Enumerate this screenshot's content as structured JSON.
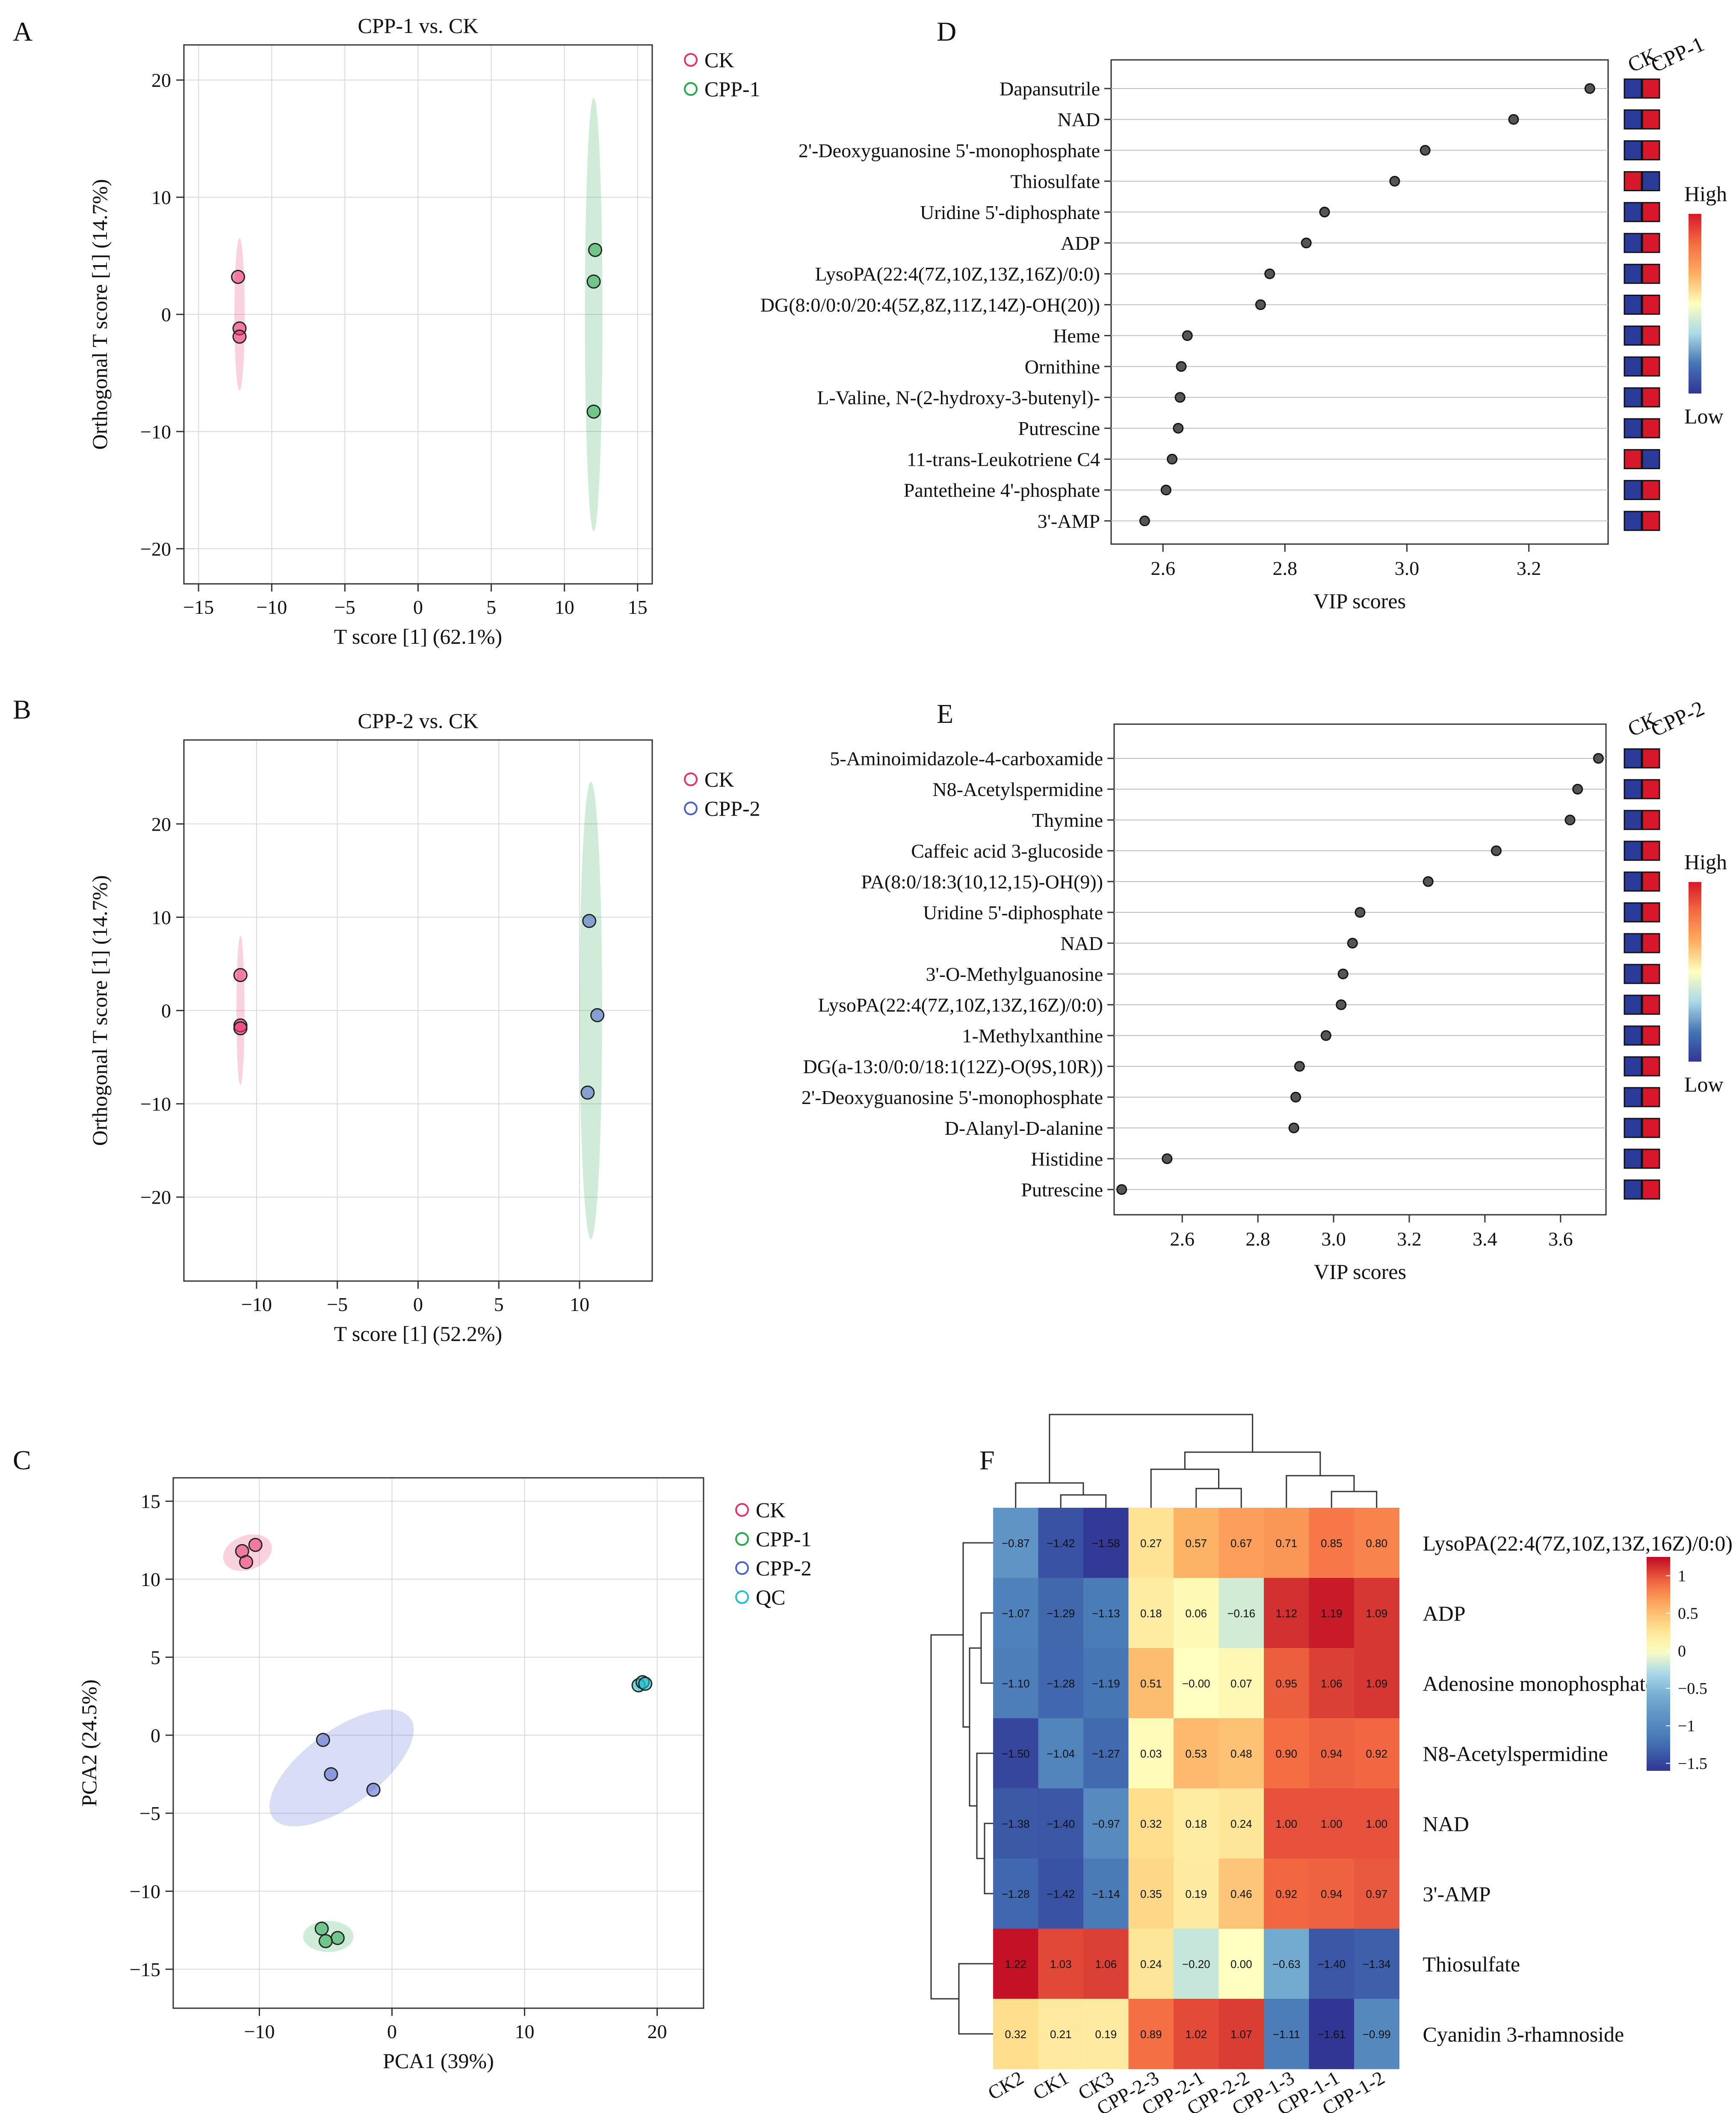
{
  "colors": {
    "ck": "#e8336a",
    "cpp1": "#22a84a",
    "cpp2": "#4a62c8",
    "qc": "#21c0c8",
    "lollipop_dot": "#555555",
    "grid": "#d9d9d9",
    "box_ck_low": "#2b3b9a",
    "box_high": "#d7182a",
    "scale_gradient": [
      "#d7182a",
      "#f46d43",
      "#fdae61",
      "#ffffbf",
      "#abd9e9",
      "#4575b4",
      "#313695"
    ]
  },
  "chart_data": [
    {
      "panel": "A",
      "type": "scatter",
      "title": "CPP-1 vs. CK",
      "xlabel": "T score [1] (62.1%)",
      "ylabel": "Orthogonal T score [1] (14.7%)",
      "xlim": [
        -16,
        16
      ],
      "ylim": [
        -23,
        23
      ],
      "xticks": [
        -15,
        -10,
        -5,
        0,
        5,
        10,
        15
      ],
      "yticks": [
        -20,
        -10,
        0,
        10,
        20
      ],
      "x_tick_labels": [
        "−15",
        "−10",
        "−5",
        "0",
        "5",
        "10",
        "15"
      ],
      "y_tick_labels": [
        "−20",
        "−10",
        "0",
        "10",
        "20"
      ],
      "grid": true,
      "legend": [
        "CK",
        "CPP-1"
      ],
      "series": [
        {
          "name": "CK",
          "color_key": "ck",
          "points": [
            [
              -12.3,
              3.2
            ],
            [
              -12.2,
              -1.2
            ],
            [
              -12.2,
              -1.9
            ]
          ],
          "ellipse": {
            "cx": -12.2,
            "cy": 0.0,
            "rx": 0.35,
            "ry": 6.5,
            "angle": 0
          }
        },
        {
          "name": "CPP-1",
          "color_key": "cpp1",
          "points": [
            [
              12.1,
              5.5
            ],
            [
              12.0,
              2.8
            ],
            [
              12.0,
              -8.3
            ]
          ],
          "ellipse": {
            "cx": 12.0,
            "cy": 0.0,
            "rx": 0.6,
            "ry": 18.5,
            "angle": 0
          }
        }
      ]
    },
    {
      "panel": "B",
      "type": "scatter",
      "title": "CPP-2 vs. CK",
      "xlabel": "T score [1] (52.2%)",
      "ylabel": "Orthogonal T score [1] (14.7%)",
      "xlim": [
        -14.5,
        14.5
      ],
      "ylim": [
        -29,
        29
      ],
      "xticks": [
        -10,
        -5,
        0,
        5,
        10
      ],
      "yticks": [
        -20,
        -10,
        0,
        10,
        20
      ],
      "x_tick_labels": [
        "−10",
        "−5",
        "0",
        "5",
        "10"
      ],
      "y_tick_labels": [
        "−20",
        "−10",
        "0",
        "10",
        "20"
      ],
      "grid": true,
      "legend": [
        "CK",
        "CPP-2"
      ],
      "series": [
        {
          "name": "CK",
          "color_key": "ck",
          "points": [
            [
              -11.0,
              3.8
            ],
            [
              -11.0,
              -1.6
            ],
            [
              -11.0,
              -1.9
            ]
          ],
          "ellipse": {
            "cx": -11.0,
            "cy": 0.0,
            "rx": 0.25,
            "ry": 8.0,
            "angle": 0
          }
        },
        {
          "name": "CPP-2",
          "color_key": "cpp2",
          "points": [
            [
              10.6,
              9.6
            ],
            [
              11.1,
              -0.5
            ],
            [
              10.5,
              -8.8
            ]
          ],
          "ellipse": {
            "cx": 10.7,
            "cy": 0.0,
            "rx": 0.7,
            "ry": 24.5,
            "angle": 0
          },
          "fill_color_key": "cpp1"
        }
      ]
    },
    {
      "panel": "C",
      "type": "scatter",
      "title": "",
      "xlabel": "PCA1 (39%)",
      "ylabel": "PCA2 (24.5%)",
      "xlim": [
        -16.5,
        23.5
      ],
      "ylim": [
        -17.5,
        16.5
      ],
      "xticks": [
        -10,
        0,
        10,
        20
      ],
      "yticks": [
        -15,
        -10,
        -5,
        0,
        5,
        10,
        15
      ],
      "x_tick_labels": [
        "−10",
        "0",
        "10",
        "20"
      ],
      "y_tick_labels": [
        "−15",
        "−10",
        "−5",
        "0",
        "5",
        "10",
        "15"
      ],
      "grid": true,
      "legend": [
        "CK",
        "CPP-1",
        "CPP-2",
        "QC"
      ],
      "series": [
        {
          "name": "CK",
          "color_key": "ck",
          "points": [
            [
              -11.3,
              11.8
            ],
            [
              -10.3,
              12.2
            ],
            [
              -11.0,
              11.1
            ]
          ],
          "ellipse": {
            "cx": -10.9,
            "cy": 11.7,
            "rx": 1.9,
            "ry": 1.1,
            "angle": 20
          }
        },
        {
          "name": "CPP-1",
          "color_key": "cpp1",
          "points": [
            [
              -5.3,
              -12.4
            ],
            [
              -4.1,
              -13.0
            ],
            [
              -5.0,
              -13.2
            ]
          ],
          "ellipse": {
            "cx": -4.8,
            "cy": -12.9,
            "rx": 1.9,
            "ry": 1.0,
            "angle": 0
          }
        },
        {
          "name": "CPP-2",
          "color_key": "cpp2",
          "points": [
            [
              -5.2,
              -0.3
            ],
            [
              -4.6,
              -2.5
            ],
            [
              -1.4,
              -3.5
            ]
          ],
          "ellipse": {
            "cx": -3.8,
            "cy": -2.1,
            "rx": 6.4,
            "ry": 2.4,
            "angle": 36
          }
        },
        {
          "name": "QC",
          "color_key": "qc",
          "points": [
            [
              18.6,
              3.2
            ],
            [
              18.9,
              3.4
            ],
            [
              19.1,
              3.3
            ]
          ],
          "ellipse": {
            "cx": 18.9,
            "cy": 3.3,
            "rx": 0.7,
            "ry": 0.5,
            "angle": 0
          }
        }
      ]
    },
    {
      "panel": "D",
      "type": "lollipop",
      "title": "",
      "xlabel": "VIP scores",
      "xlim": [
        2.515,
        3.33
      ],
      "xticks": [
        2.6,
        2.8,
        3.0,
        3.2
      ],
      "x_tick_labels": [
        "2.6",
        "2.8",
        "3.0",
        "3.2"
      ],
      "group_labels": [
        "CK",
        "CPP-1"
      ],
      "scale_labels": [
        "High",
        "Low"
      ],
      "items": [
        {
          "label": "Dapansutrile",
          "vip": 3.3,
          "ck_high": false
        },
        {
          "label": "NAD",
          "vip": 3.175,
          "ck_high": false
        },
        {
          "label": "2'-Deoxyguanosine 5'-monophosphate",
          "vip": 3.03,
          "ck_high": false
        },
        {
          "label": "Thiosulfate",
          "vip": 2.98,
          "ck_high": true
        },
        {
          "label": "Uridine 5'-diphosphate",
          "vip": 2.865,
          "ck_high": false
        },
        {
          "label": "ADP",
          "vip": 2.835,
          "ck_high": false
        },
        {
          "label": "LysoPA(22:4(7Z,10Z,13Z,16Z)/0:0)",
          "vip": 2.775,
          "ck_high": false
        },
        {
          "label": "DG(8:0/0:0/20:4(5Z,8Z,11Z,14Z)-OH(20))",
          "vip": 2.76,
          "ck_high": false
        },
        {
          "label": "Heme",
          "vip": 2.64,
          "ck_high": false
        },
        {
          "label": "Ornithine",
          "vip": 2.63,
          "ck_high": false
        },
        {
          "label": "L-Valine, N-(2-hydroxy-3-butenyl)-",
          "vip": 2.628,
          "ck_high": false
        },
        {
          "label": "Putrescine",
          "vip": 2.625,
          "ck_high": false
        },
        {
          "label": "11-trans-Leukotriene C4",
          "vip": 2.615,
          "ck_high": true
        },
        {
          "label": "Pantetheine 4'-phosphate",
          "vip": 2.605,
          "ck_high": false
        },
        {
          "label": "3'-AMP",
          "vip": 2.57,
          "ck_high": false
        }
      ]
    },
    {
      "panel": "E",
      "type": "lollipop",
      "title": "",
      "xlabel": "VIP scores",
      "xlim": [
        2.42,
        3.72
      ],
      "xticks": [
        2.6,
        2.8,
        3.0,
        3.2,
        3.4,
        3.6
      ],
      "x_tick_labels": [
        "2.6",
        "2.8",
        "3.0",
        "3.2",
        "3.4",
        "3.6"
      ],
      "group_labels": [
        "CK",
        "CPP-2"
      ],
      "scale_labels": [
        "High",
        "Low"
      ],
      "items": [
        {
          "label": "5-Aminoimidazole-4-carboxamide",
          "vip": 3.7,
          "ck_high": false
        },
        {
          "label": "N8-Acetylspermidine",
          "vip": 3.645,
          "ck_high": false
        },
        {
          "label": "Thymine",
          "vip": 3.625,
          "ck_high": false
        },
        {
          "label": "Caffeic acid 3-glucoside",
          "vip": 3.43,
          "ck_high": false
        },
        {
          "label": "PA(8:0/18:3(10,12,15)-OH(9))",
          "vip": 3.25,
          "ck_high": false
        },
        {
          "label": "Uridine 5'-diphosphate",
          "vip": 3.07,
          "ck_high": false
        },
        {
          "label": "NAD",
          "vip": 3.05,
          "ck_high": false
        },
        {
          "label": "3'-O-Methylguanosine",
          "vip": 3.025,
          "ck_high": false
        },
        {
          "label": "LysoPA(22:4(7Z,10Z,13Z,16Z)/0:0)",
          "vip": 3.02,
          "ck_high": false
        },
        {
          "label": "1-Methylxanthine",
          "vip": 2.98,
          "ck_high": false
        },
        {
          "label": "DG(a-13:0/0:0/18:1(12Z)-O(9S,10R))",
          "vip": 2.91,
          "ck_high": false
        },
        {
          "label": "2'-Deoxyguanosine 5'-monophosphate",
          "vip": 2.9,
          "ck_high": false
        },
        {
          "label": "D-Alanyl-D-alanine",
          "vip": 2.895,
          "ck_high": false
        },
        {
          "label": "Histidine",
          "vip": 2.56,
          "ck_high": false
        },
        {
          "label": "Putrescine",
          "vip": 2.44,
          "ck_high": false
        }
      ]
    },
    {
      "panel": "F",
      "type": "heatmap",
      "title": "",
      "columns": [
        "CK2",
        "CK1",
        "CK3",
        "CPP-2-3",
        "CPP-2-1",
        "CPP-2-2",
        "CPP-1-3",
        "CPP-1-1",
        "CPP-1-2"
      ],
      "rows": [
        "LysoPA(22:4(7Z,10Z,13Z,16Z)/0:0)",
        "ADP",
        "Adenosine monophosphate",
        "N8-Acetylspermidine",
        "NAD",
        "3'-AMP",
        "Thiosulfate",
        "Cyanidin 3-rhamnoside"
      ],
      "values": [
        [
          -0.87,
          -1.42,
          -1.58,
          0.27,
          0.57,
          0.67,
          0.71,
          0.85,
          0.8
        ],
        [
          -1.07,
          -1.29,
          -1.13,
          0.18,
          0.06,
          -0.16,
          1.12,
          1.19,
          1.09
        ],
        [
          -1.1,
          -1.28,
          -1.19,
          0.51,
          -0.0,
          0.07,
          0.95,
          1.06,
          1.09
        ],
        [
          -1.5,
          -1.04,
          -1.27,
          0.03,
          0.53,
          0.48,
          0.9,
          0.94,
          0.92
        ],
        [
          -1.38,
          -1.4,
          -0.97,
          0.32,
          0.18,
          0.24,
          1.0,
          1.0,
          1.0
        ],
        [
          -1.28,
          -1.42,
          -1.14,
          0.35,
          0.19,
          0.46,
          0.92,
          0.94,
          0.97
        ],
        [
          1.22,
          1.03,
          1.06,
          0.24,
          -0.2,
          0.0,
          -0.63,
          -1.4,
          -1.34
        ],
        [
          0.32,
          0.21,
          0.19,
          0.89,
          1.02,
          1.07,
          -1.11,
          -1.61,
          -0.99
        ]
      ],
      "value_labels": [
        [
          "−0.87",
          "−1.42",
          "−1.58",
          "0.27",
          "0.57",
          "0.67",
          "0.71",
          "0.85",
          "0.80"
        ],
        [
          "−1.07",
          "−1.29",
          "−1.13",
          "0.18",
          "0.06",
          "−0.16",
          "1.12",
          "1.19",
          "1.09"
        ],
        [
          "−1.10",
          "−1.28",
          "−1.19",
          "0.51",
          "−0.00",
          "0.07",
          "0.95",
          "1.06",
          "1.09"
        ],
        [
          "−1.50",
          "−1.04",
          "−1.27",
          "0.03",
          "0.53",
          "0.48",
          "0.90",
          "0.94",
          "0.92"
        ],
        [
          "−1.38",
          "−1.40",
          "−0.97",
          "0.32",
          "0.18",
          "0.24",
          "1.00",
          "1.00",
          "1.00"
        ],
        [
          "−1.28",
          "−1.42",
          "−1.14",
          "0.35",
          "0.19",
          "0.46",
          "0.92",
          "0.94",
          "0.97"
        ],
        [
          "1.22",
          "1.03",
          "1.06",
          "0.24",
          "−0.20",
          "0.00",
          "−0.63",
          "−1.40",
          "−1.34"
        ],
        [
          "0.32",
          "0.21",
          "0.19",
          "0.89",
          "1.02",
          "1.07",
          "−1.11",
          "−1.61",
          "−0.99"
        ]
      ],
      "color_range": [
        -1.6,
        1.25
      ],
      "colorbar_ticks": [
        1,
        0.5,
        0,
        -0.5,
        -1,
        -1.5
      ],
      "colorbar_labels": [
        "1",
        "0.5",
        "0",
        "−0.5",
        "−1",
        "−1.5"
      ]
    }
  ]
}
